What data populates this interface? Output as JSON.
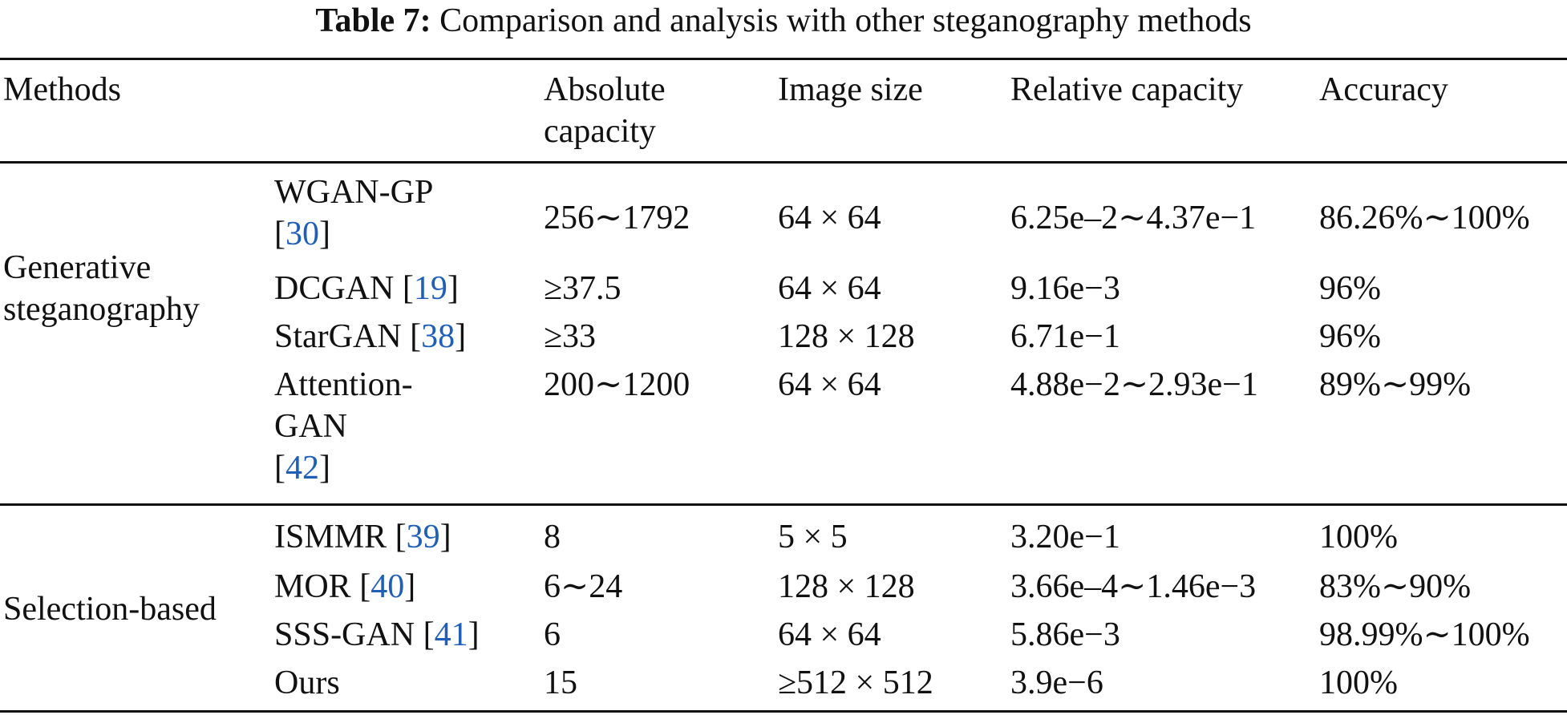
{
  "caption": {
    "label": "Table 7:",
    "text": "Comparison and analysis with other steganography methods"
  },
  "header": {
    "methods": "Methods",
    "absolute_capacity": "Absolute capacity",
    "image_size": "Image size",
    "relative_capacity": "Relative capacity",
    "accuracy": "Accuracy"
  },
  "groups": [
    {
      "name": "Generative steganography",
      "rows": [
        {
          "method": "WGAN-GP",
          "ref": "30",
          "absolute": "256∼1792",
          "size": "64 × 64",
          "relative": "6.25e–2∼4.37e−1",
          "accuracy": "86.26%∼100%"
        },
        {
          "method": "DCGAN",
          "ref": "19",
          "absolute": "≥37.5",
          "size": "64 × 64",
          "relative": "9.16e−3",
          "accuracy": "96%"
        },
        {
          "method": "StarGAN",
          "ref": "38",
          "absolute": "≥33",
          "size": "128 × 128",
          "relative": "6.71e−1",
          "accuracy": "96%"
        },
        {
          "method": "Attention-GAN",
          "ref": "42",
          "absolute": "200∼1200",
          "size": "64 × 64",
          "relative": "4.88e−2∼2.93e−1",
          "accuracy": "89%∼99%"
        }
      ]
    },
    {
      "name": "Selection-based",
      "rows": [
        {
          "method": "ISMMR",
          "ref": "39",
          "absolute": "8",
          "size": "5 × 5",
          "relative": "3.20e−1",
          "accuracy": "100%"
        },
        {
          "method": "MOR",
          "ref": "40",
          "absolute": "6∼24",
          "size": "128 × 128",
          "relative": "3.66e–4∼1.46e−3",
          "accuracy": "83%∼90%"
        },
        {
          "method": "SSS-GAN",
          "ref": "41",
          "absolute": "6",
          "size": "64 × 64",
          "relative": "5.86e−3",
          "accuracy": "98.99%∼100%"
        },
        {
          "method": "Ours",
          "ref": "",
          "absolute": "15",
          "size": "≥512 × 512",
          "relative": "3.9e−6",
          "accuracy": "100%"
        }
      ]
    }
  ]
}
